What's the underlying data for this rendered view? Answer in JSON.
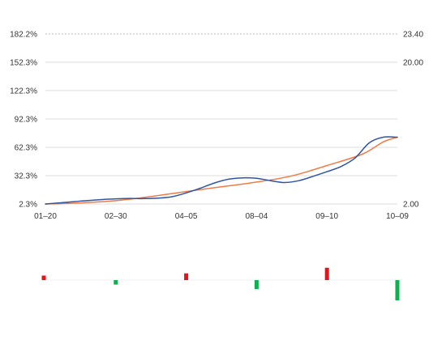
{
  "colors": {
    "series_blue": "#2e55a6",
    "series_orange": "#ef7b45",
    "grid": "#dddddd",
    "grid_top": "#bbbbbb",
    "bar_up": "#e8121a",
    "bar_down": "#10b050"
  },
  "chart_data": [
    {
      "type": "line",
      "x_ticks": [
        "01–20",
        "02–30",
        "04–05",
        "08–04",
        "09–10",
        "10–09"
      ],
      "y_left_ticks": [
        "182.2%",
        "152.3%",
        "122.3%",
        "92.3%",
        "62.3%",
        "32.3%",
        "2.3%"
      ],
      "y_left_values": [
        182.2,
        152.3,
        122.3,
        92.3,
        62.3,
        32.3,
        2.3
      ],
      "y_right_ticks": [
        "23.40",
        "20.00",
        "2.00"
      ],
      "y_right_values": [
        23.4,
        20.0,
        2.0
      ],
      "ylim_left": [
        2.3,
        182.2
      ],
      "grid": true,
      "series": [
        {
          "color_key": "series_blue",
          "x": [
            0,
            0.2,
            0.4,
            0.6,
            0.8,
            1.0,
            1.2,
            1.4,
            1.6,
            1.8,
            2.0,
            2.2,
            2.4,
            2.6,
            2.8,
            3.0,
            3.2,
            3.4,
            3.6,
            3.8,
            4.0,
            4.2,
            4.4,
            4.6,
            4.8,
            5.0
          ],
          "values": [
            2.3,
            3.5,
            4.8,
            6.0,
            7.0,
            7.8,
            8.2,
            8.0,
            8.5,
            10.0,
            14.0,
            19.0,
            24.5,
            28.5,
            30.0,
            29.5,
            27.0,
            25.0,
            27.0,
            31.5,
            36.5,
            42.0,
            51.0,
            67.0,
            73.0,
            73.0
          ]
        },
        {
          "color_key": "series_orange",
          "x": [
            0,
            0.5,
            1.0,
            1.5,
            2.0,
            2.5,
            3.0,
            3.5,
            4.0,
            4.5,
            4.8,
            5.0
          ],
          "values": [
            2.3,
            3.5,
            5.8,
            10.2,
            15.5,
            20.5,
            25.5,
            32.0,
            43.0,
            55.0,
            68.0,
            73.0
          ]
        }
      ]
    },
    {
      "type": "bar",
      "x": [
        0,
        1,
        2,
        3,
        4,
        5
      ],
      "values": [
        4,
        -4,
        6,
        -8,
        11,
        -18
      ],
      "ylim": [
        -20,
        20
      ]
    }
  ]
}
